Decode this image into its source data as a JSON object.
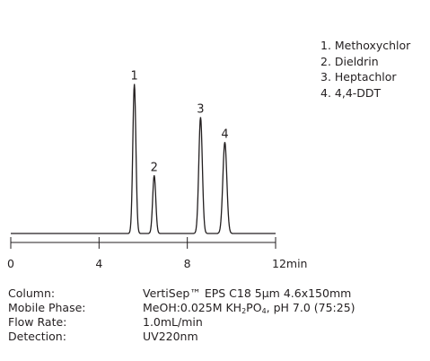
{
  "chart_data": {
    "type": "line",
    "xlabel": "",
    "ylabel": "",
    "xlim": [
      0,
      12
    ],
    "x_unit": "min",
    "x_ticks": [
      0,
      4,
      8,
      12
    ],
    "x_tick_labels": [
      "0",
      "4",
      "8",
      "12min"
    ],
    "peaks": [
      {
        "label": "1",
        "rt": 5.6,
        "height": 0.9,
        "width": 0.07
      },
      {
        "label": "2",
        "rt": 6.5,
        "height": 0.35,
        "width": 0.07
      },
      {
        "label": "3",
        "rt": 8.6,
        "height": 0.7,
        "width": 0.08
      },
      {
        "label": "4",
        "rt": 9.7,
        "height": 0.55,
        "width": 0.09
      }
    ],
    "legend": [
      "1. Methoxychlor",
      "2. Dieldrin",
      "3. Heptachlor",
      "4. 4,4-DDT"
    ],
    "line_color": "#231f20"
  },
  "conditions": {
    "column": {
      "label": "Column:",
      "value": "VertiSep™ EPS C18 5μm 4.6x150mm"
    },
    "mobile_phase": {
      "label": "Mobile Phase:",
      "value_prefix": "MeOH:0.025M KH",
      "sub1": "2",
      "value_mid": "PO",
      "sub2": "4",
      "value_suffix": ", pH 7.0 (75:25)"
    },
    "flow_rate": {
      "label": "Flow Rate:",
      "value": "1.0mL/min"
    },
    "detection": {
      "label": "Detection:",
      "value": "UV220nm"
    }
  }
}
